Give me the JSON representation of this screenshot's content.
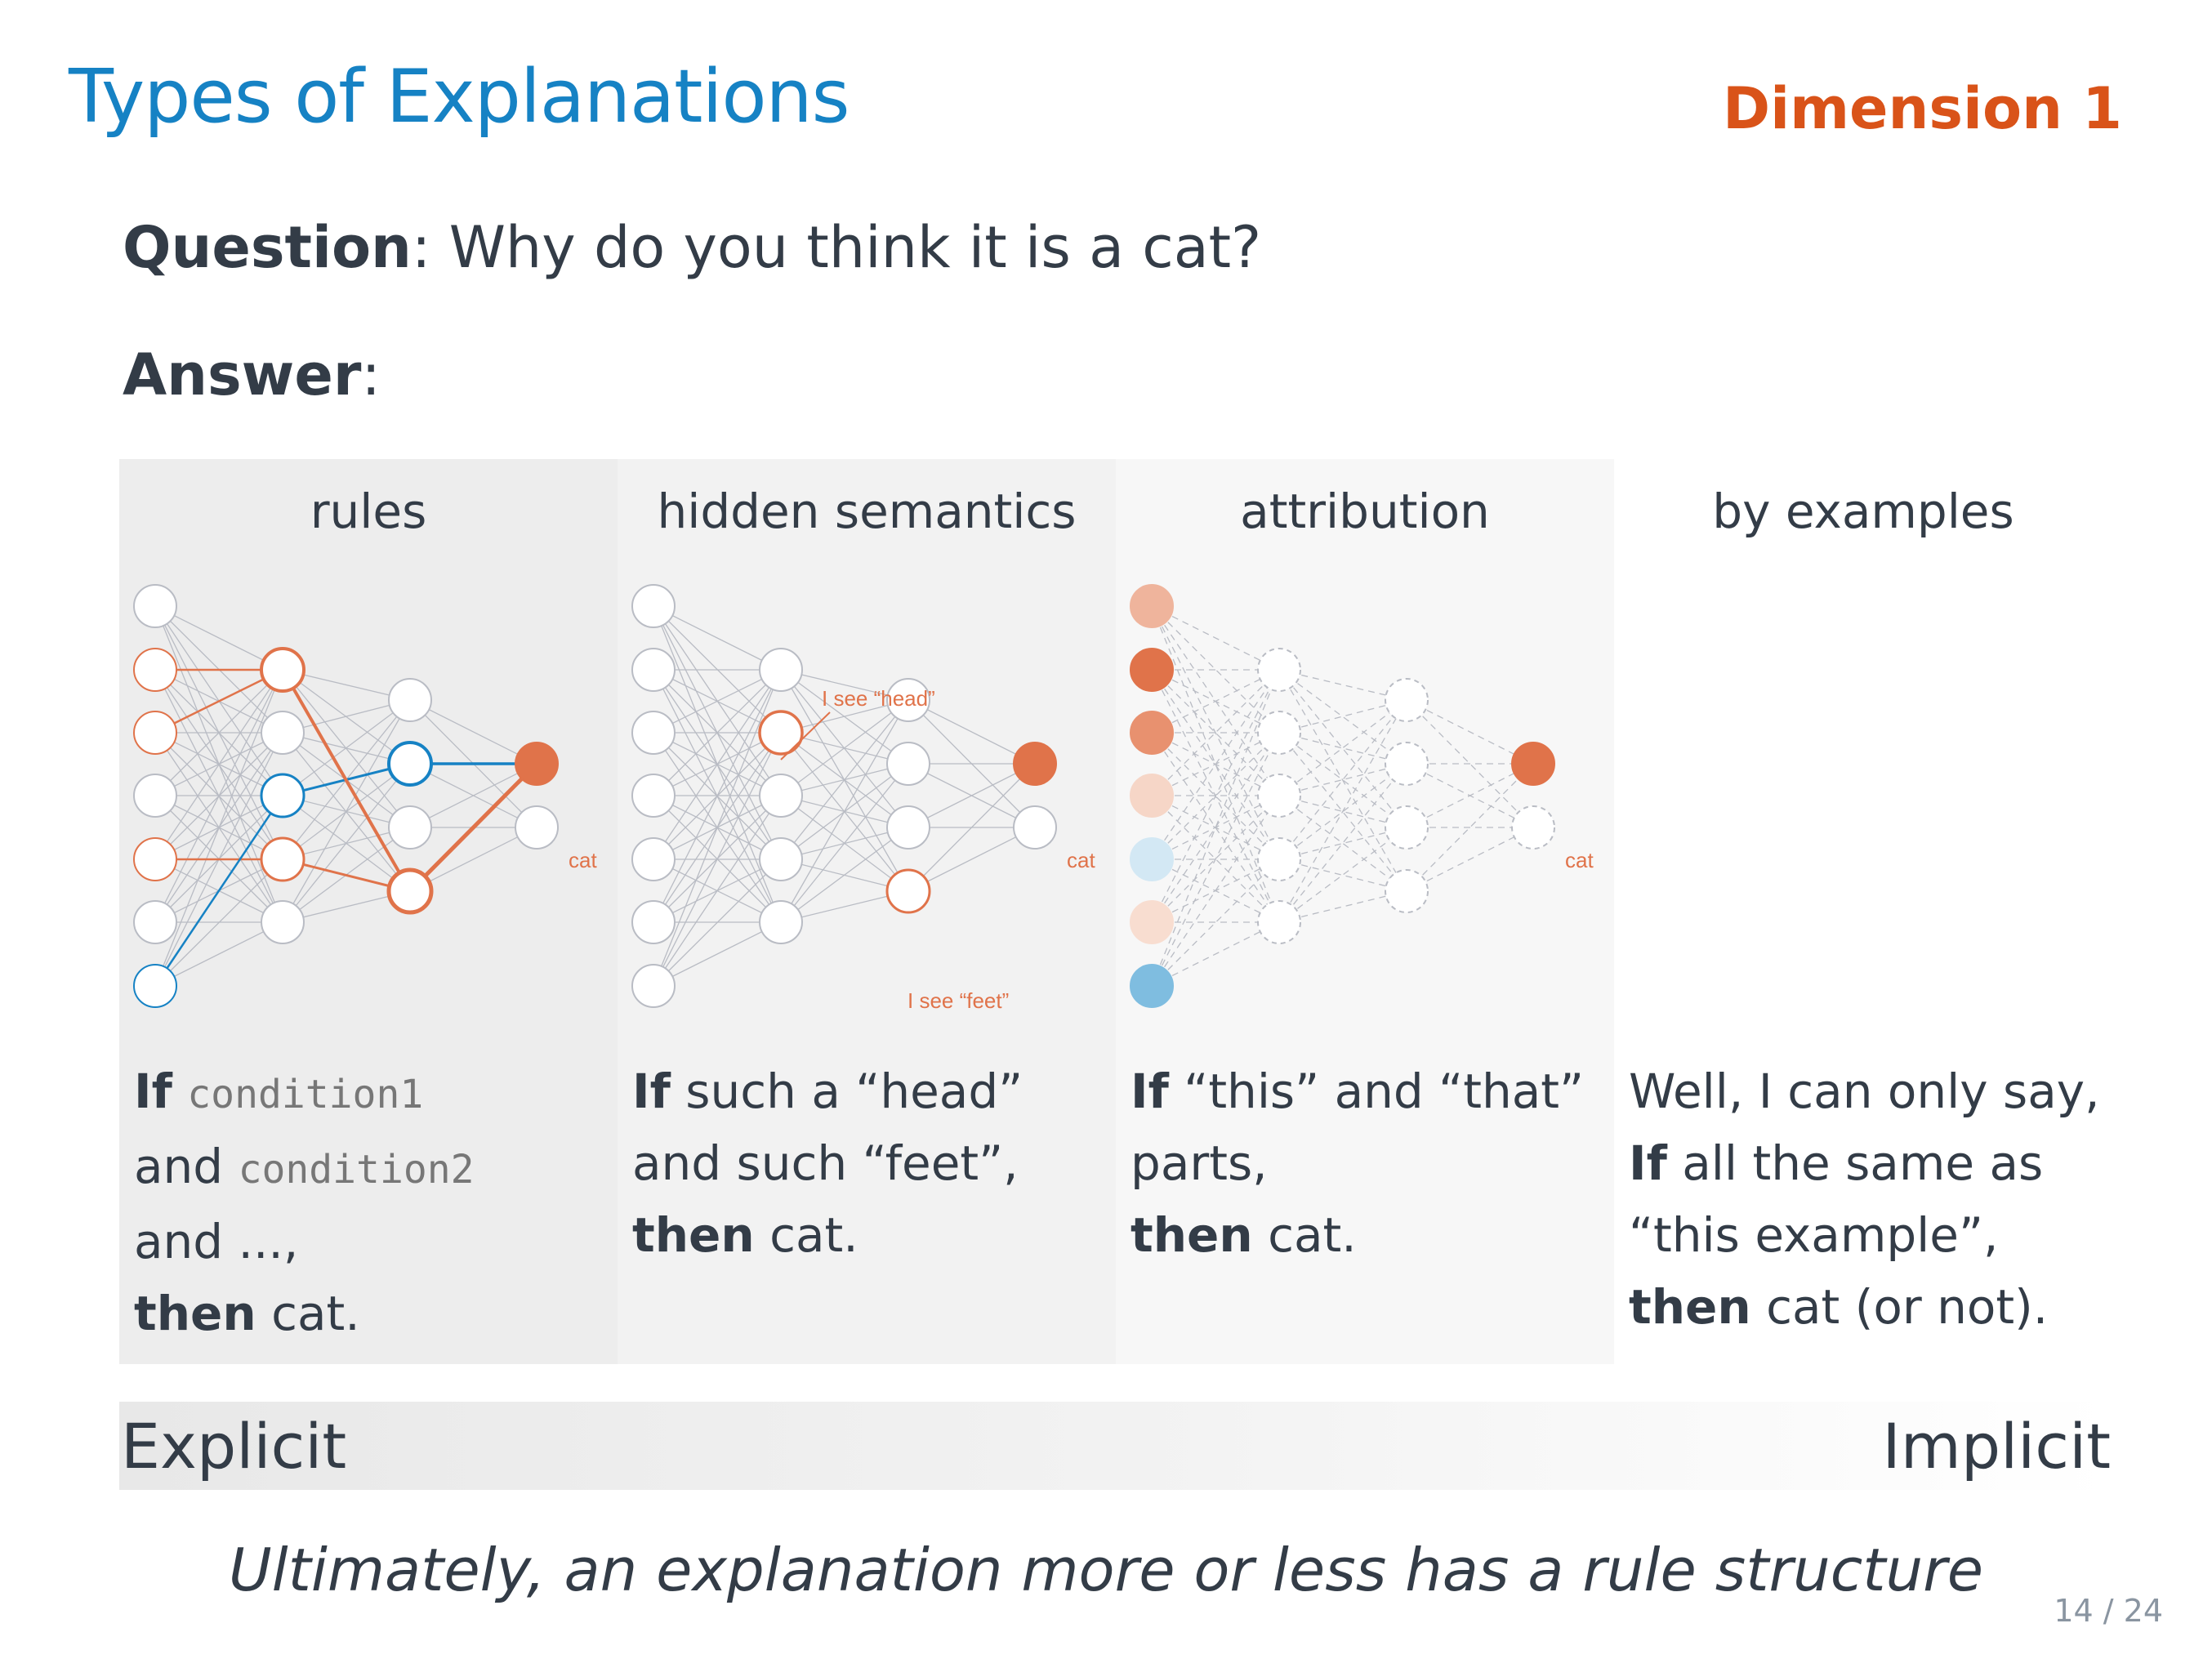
{
  "slide": {
    "title": "Types of Explanations",
    "dimension": "Dimension 1",
    "question_label": "Question",
    "question_text": ": Why do you think it is a cat?",
    "answer_label": "Answer",
    "answer_text": ":",
    "page_number": "14 / 24"
  },
  "panels": [
    {
      "heading": "rules",
      "output_label": "cat",
      "text": {
        "if": "If",
        "cond1": "condition1",
        "and1": "and",
        "cond2": "condition2",
        "line3": "and ...,",
        "then": "then",
        "tail": "cat."
      }
    },
    {
      "heading": "hidden semantics",
      "output_label": "cat",
      "annotation_head": "I see “head”",
      "annotation_feet": "I see “feet”",
      "text": {
        "if": "If",
        "rest1": "such a “head”",
        "line2": "and such “feet”,",
        "then": "then",
        "tail": "cat."
      }
    },
    {
      "heading": "attribution",
      "output_label": "cat",
      "text": {
        "if": "If",
        "rest1": "“this” and “that”",
        "line2": "parts,",
        "then": "then",
        "tail": "cat."
      }
    },
    {
      "heading": "by examples",
      "text": {
        "line1": "Well, I can only say,",
        "if": "If",
        "rest2": "all the same as",
        "line3": "“this example”,",
        "then": "then",
        "tail": "cat (or not)."
      }
    }
  ],
  "spectrum": {
    "left": "Explicit",
    "right": "Implicit"
  },
  "conclusion": "Ultimately, an explanation more or less has a rule structure",
  "colors": {
    "title_blue": "#1682c4",
    "accent_orange": "#d95319",
    "node_orange": "#e0734a",
    "node_blue": "#1682c4",
    "light_blue": "#7fbde0"
  }
}
